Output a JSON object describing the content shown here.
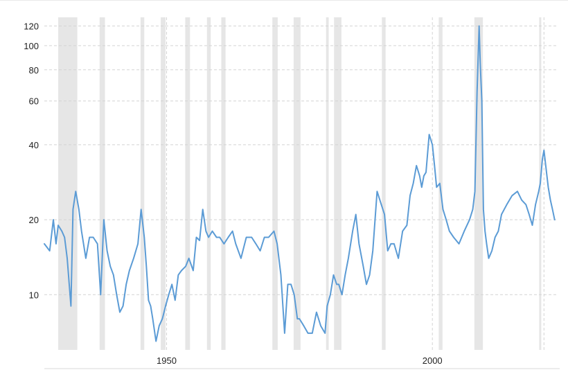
{
  "chart_data": {
    "type": "line",
    "title": "",
    "xlabel": "",
    "ylabel": "",
    "y_scale": "log",
    "ylim": [
      6,
      130
    ],
    "xlim": [
      1927.0,
      2023.3
    ],
    "y_ticks": [
      10,
      20,
      40,
      60,
      80,
      100,
      120
    ],
    "y_tick_labels": [
      "10",
      "20",
      "40",
      "60",
      "80",
      "100",
      "120"
    ],
    "x_ticks": [
      1950,
      2000
    ],
    "x_tick_labels": [
      "1950",
      "2000"
    ],
    "grid": "horizontal dashed",
    "legend": "none",
    "colors": {
      "series": "#5b9bd5",
      "recession_bands": "#e6e6e6",
      "grid": "#d4d4d4"
    },
    "recession_periods": [
      [
        1929.6,
        1933.2
      ],
      [
        1937.4,
        1938.4
      ],
      [
        1945.1,
        1945.8
      ],
      [
        1948.9,
        1949.8
      ],
      [
        1953.5,
        1954.4
      ],
      [
        1957.6,
        1958.3
      ],
      [
        1960.3,
        1961.1
      ],
      [
        1969.9,
        1970.9
      ],
      [
        1973.9,
        1975.2
      ],
      [
        1980.0,
        1980.5
      ],
      [
        1981.5,
        1982.9
      ],
      [
        1990.5,
        1991.2
      ],
      [
        2001.2,
        2001.9
      ],
      [
        2007.9,
        2009.5
      ],
      [
        2020.1,
        2020.4
      ]
    ],
    "series": [
      {
        "x": [
          1927.0,
          1928.0,
          1928.7,
          1929.2,
          1929.6,
          1930.3,
          1930.8,
          1931.3,
          1932.0,
          1932.4,
          1932.9,
          1933.5,
          1934.0,
          1934.8,
          1935.5,
          1936.2,
          1937.0,
          1937.6,
          1938.2,
          1938.8,
          1939.4,
          1940.0,
          1940.6,
          1941.2,
          1941.8,
          1942.4,
          1943.0,
          1943.8,
          1944.6,
          1945.2,
          1945.8,
          1946.2,
          1946.6,
          1947.0,
          1947.4,
          1948.0,
          1948.6,
          1949.2,
          1949.8,
          1950.4,
          1951.0,
          1951.6,
          1952.2,
          1952.8,
          1953.6,
          1954.2,
          1955.0,
          1955.6,
          1956.2,
          1956.8,
          1957.4,
          1957.9,
          1958.6,
          1959.4,
          1960.0,
          1960.8,
          1961.6,
          1962.4,
          1963.0,
          1964.0,
          1965.0,
          1966.0,
          1966.8,
          1967.6,
          1968.4,
          1969.2,
          1970.2,
          1970.8,
          1971.5,
          1972.2,
          1972.8,
          1973.4,
          1974.0,
          1974.6,
          1975.0,
          1975.8,
          1976.6,
          1977.4,
          1978.2,
          1979.0,
          1979.8,
          1980.2,
          1980.8,
          1981.4,
          1982.0,
          1982.4,
          1983.0,
          1983.6,
          1984.2,
          1985.0,
          1985.6,
          1986.2,
          1987.0,
          1987.6,
          1988.2,
          1988.8,
          1989.6,
          1990.4,
          1991.0,
          1991.6,
          1992.2,
          1992.8,
          1993.6,
          1994.4,
          1995.2,
          1995.8,
          1996.4,
          1997.0,
          1997.6,
          1998.0,
          1998.4,
          1998.8,
          1999.4,
          2000.0,
          2000.4,
          2000.8,
          2001.4,
          2002.0,
          2002.6,
          2003.2,
          2004.0,
          2005.0,
          2006.0,
          2007.0,
          2007.6,
          2008.0,
          2008.4,
          2008.8,
          2009.0,
          2009.3,
          2009.6,
          2009.9,
          2010.2,
          2010.6,
          2011.2,
          2011.8,
          2012.4,
          2013.0,
          2014.0,
          2015.0,
          2016.0,
          2016.8,
          2017.6,
          2018.2,
          2018.8,
          2019.4,
          2020.0,
          2020.3,
          2020.7,
          2021.0,
          2021.4,
          2021.8,
          2022.2,
          2022.6,
          2023.0
        ],
        "values": [
          16,
          15,
          20,
          16,
          19,
          18,
          17,
          14,
          9,
          22,
          26,
          22,
          18,
          14,
          17,
          17,
          16,
          10,
          20,
          15,
          13,
          12,
          10,
          8.5,
          9,
          11,
          12.5,
          14,
          16,
          22,
          17,
          13,
          9.5,
          9,
          8,
          6.5,
          7.5,
          8,
          9,
          10,
          11,
          9.5,
          12,
          12.5,
          13,
          14,
          12.5,
          17,
          16.5,
          22,
          18,
          17,
          18,
          17,
          17,
          16,
          17,
          18,
          16,
          14,
          17,
          17,
          16,
          15,
          17,
          17,
          18,
          16,
          12,
          7,
          11,
          11,
          10,
          8,
          8,
          7.5,
          7,
          7,
          8.5,
          7.5,
          7,
          9,
          10,
          12,
          11,
          11,
          10,
          12,
          14,
          18,
          21,
          16,
          13,
          11,
          12,
          15,
          26,
          23,
          21,
          15,
          16,
          16,
          14,
          18,
          19,
          25,
          28,
          33,
          30,
          27,
          30,
          31,
          44,
          40,
          33,
          27,
          28,
          22,
          20,
          18,
          17,
          16,
          18,
          20,
          22,
          26,
          65,
          120,
          85,
          60,
          22,
          18,
          16,
          14,
          15,
          17,
          18,
          21,
          23,
          25,
          26,
          24,
          23,
          21,
          19,
          23,
          26,
          28,
          35,
          38,
          32,
          27,
          24,
          22,
          20
        ]
      }
    ]
  }
}
